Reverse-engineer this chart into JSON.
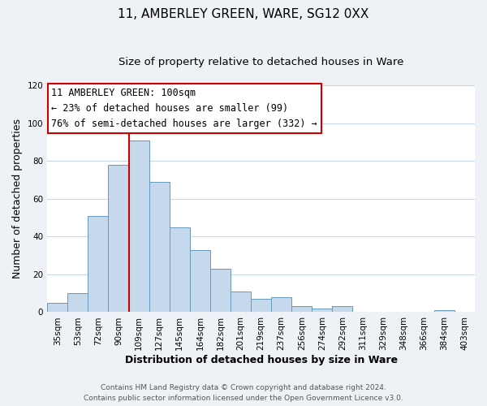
{
  "title": "11, AMBERLEY GREEN, WARE, SG12 0XX",
  "subtitle": "Size of property relative to detached houses in Ware",
  "xlabel": "Distribution of detached houses by size in Ware",
  "ylabel": "Number of detached properties",
  "categories": [
    "35sqm",
    "53sqm",
    "72sqm",
    "90sqm",
    "109sqm",
    "127sqm",
    "145sqm",
    "164sqm",
    "182sqm",
    "201sqm",
    "219sqm",
    "237sqm",
    "256sqm",
    "274sqm",
    "292sqm",
    "311sqm",
    "329sqm",
    "348sqm",
    "366sqm",
    "384sqm",
    "403sqm"
  ],
  "values": [
    5,
    10,
    51,
    78,
    91,
    69,
    45,
    33,
    23,
    11,
    7,
    8,
    3,
    2,
    3,
    0,
    0,
    0,
    0,
    1,
    0
  ],
  "bar_color": "#c6d9ec",
  "bar_edge_color": "#6699bb",
  "reference_line_color": "#cc0000",
  "annotation_box_text": "11 AMBERLEY GREEN: 100sqm\n← 23% of detached houses are smaller (99)\n76% of semi-detached houses are larger (332) →",
  "annotation_box_edge_color": "#cc0000",
  "ylim": [
    0,
    120
  ],
  "yticks": [
    0,
    20,
    40,
    60,
    80,
    100,
    120
  ],
  "footer_line1": "Contains HM Land Registry data © Crown copyright and database right 2024.",
  "footer_line2": "Contains public sector information licensed under the Open Government Licence v3.0.",
  "title_fontsize": 11,
  "subtitle_fontsize": 9.5,
  "axis_label_fontsize": 9,
  "tick_fontsize": 7.5,
  "footer_fontsize": 6.5,
  "annotation_fontsize": 8.5,
  "background_color": "#eef2f7",
  "plot_background_color": "#ffffff",
  "grid_color": "#c8d8e8",
  "bar_width": 1.0
}
